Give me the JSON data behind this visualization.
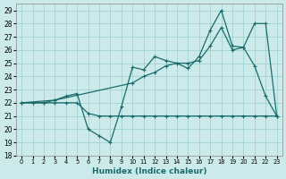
{
  "xlabel": "Humidex (Indice chaleur)",
  "bg_color": "#cceaea",
  "grid_color": "#99cccc",
  "line_color": "#1a6b6b",
  "xlim": [
    -0.5,
    23.5
  ],
  "ylim": [
    18,
    29.5
  ],
  "xticks": [
    0,
    1,
    2,
    3,
    4,
    5,
    6,
    7,
    8,
    9,
    10,
    11,
    12,
    13,
    14,
    15,
    16,
    17,
    18,
    19,
    20,
    21,
    22,
    23
  ],
  "yticks": [
    18,
    19,
    20,
    21,
    22,
    23,
    24,
    25,
    26,
    27,
    28,
    29
  ],
  "line1_x": [
    0,
    1,
    2,
    3,
    4,
    5,
    6,
    7,
    8,
    9,
    10,
    11,
    12,
    13,
    14,
    15,
    16,
    17,
    18,
    19,
    20,
    21,
    22,
    23
  ],
  "line1_y": [
    22,
    22,
    22,
    22,
    22,
    22,
    21.2,
    21.0,
    21.0,
    21.0,
    21.0,
    21.0,
    21.0,
    21.0,
    21.0,
    21.0,
    21.0,
    21.0,
    21.0,
    21.0,
    21.0,
    21.0,
    21.0,
    21.0
  ],
  "line2_x": [
    0,
    1,
    2,
    3,
    4,
    5,
    6,
    7,
    8,
    9,
    10,
    11,
    12,
    13,
    14,
    15,
    16,
    17,
    18,
    19,
    20,
    21,
    22,
    23
  ],
  "line2_y": [
    22,
    22,
    22,
    22.2,
    22.5,
    22.7,
    20.0,
    19.5,
    19.0,
    21.7,
    24.7,
    24.5,
    25.5,
    25.2,
    25.0,
    24.6,
    25.5,
    27.5,
    29.0,
    26.3,
    26.2,
    24.8,
    22.5,
    21.0
  ],
  "line3_x": [
    0,
    3,
    10,
    11,
    12,
    13,
    14,
    15,
    16,
    17,
    18,
    19,
    20,
    21,
    22,
    23
  ],
  "line3_y": [
    22,
    22.2,
    23.5,
    24.0,
    24.3,
    24.8,
    25.0,
    25.0,
    25.2,
    26.3,
    27.7,
    26.0,
    26.2,
    28.0,
    28.0,
    21.0
  ]
}
